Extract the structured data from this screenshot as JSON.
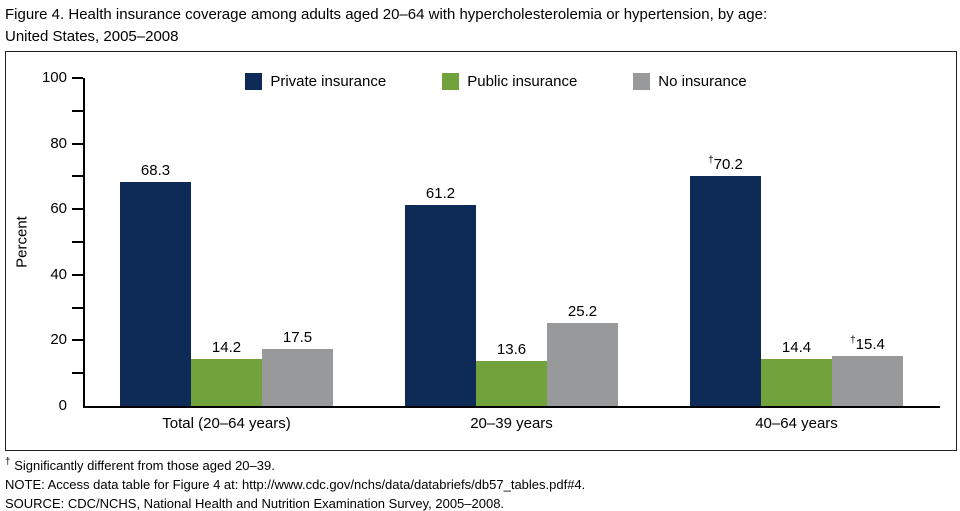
{
  "figure": {
    "title_line1": "Figure 4. Health insurance coverage among adults aged 20–64 with hypercholesterolemia or hypertension, by age:",
    "title_line2": "United States, 2005–2008"
  },
  "chart_data": {
    "type": "bar",
    "title": "Figure 4. Health insurance coverage among adults aged 20–64 with hypercholesterolemia or hypertension, by age: United States, 2005–2008",
    "xlabel": "",
    "ylabel": "Percent",
    "ylim": [
      0,
      100
    ],
    "ytick_labeled": [
      0,
      20,
      40,
      60,
      80,
      100
    ],
    "ytick_minor": [
      10,
      30,
      50,
      70,
      90
    ],
    "grid": false,
    "legend_position": "top-center",
    "dagger_symbol": "†",
    "categories": [
      "Total (20–64 years)",
      "20–39 years",
      "40–64 years"
    ],
    "series": [
      {
        "name": "Private insurance",
        "color": "#0e2a56",
        "values": [
          68.3,
          61.2,
          70.2
        ],
        "dagger": [
          false,
          false,
          true
        ]
      },
      {
        "name": "Public insurance",
        "color": "#72a23b",
        "values": [
          14.2,
          13.6,
          14.4
        ],
        "dagger": [
          false,
          false,
          false
        ]
      },
      {
        "name": "No insurance",
        "color": "#97999b",
        "values": [
          17.5,
          25.2,
          15.4
        ],
        "dagger": [
          false,
          false,
          true
        ]
      }
    ],
    "axis_color": "#000000"
  },
  "footnotes": {
    "dagger_symbol": "†",
    "dagger_text": "Significantly different from those aged 20–39.",
    "note": "NOTE: Access data table for Figure 4 at: http://www.cdc.gov/nchs/data/databriefs/db57_tables.pdf#4.",
    "source": "SOURCE: CDC/NCHS, National Health and Nutrition Examination Survey, 2005–2008."
  }
}
